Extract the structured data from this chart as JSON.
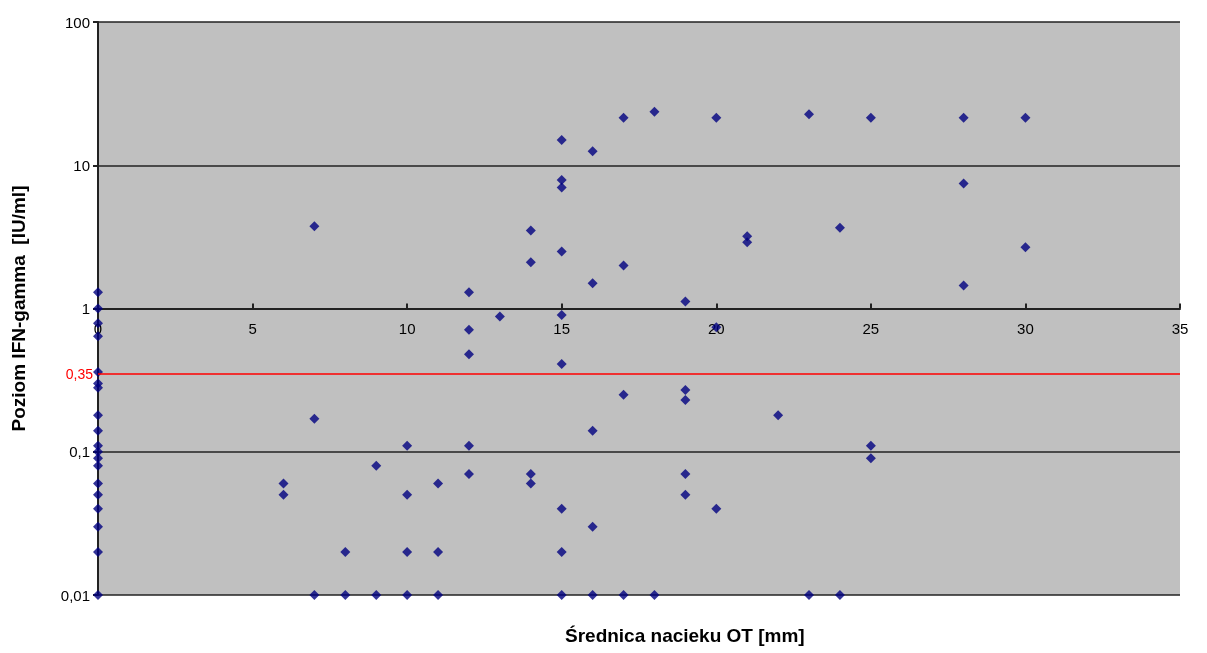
{
  "chart_data": {
    "type": "scatter",
    "xlabel": "Średnica nacieku OT [mm]",
    "ylabel": "Poziom IFN-gamma  [IU/ml]",
    "series": [
      {
        "color": "#000080",
        "x": [
          0,
          0,
          0,
          0,
          0,
          0,
          0,
          0,
          0,
          0,
          0,
          0,
          0,
          0,
          0,
          0,
          0,
          0,
          0,
          6,
          6,
          7,
          7,
          7,
          8,
          8,
          9,
          9,
          10,
          10,
          10,
          10,
          11,
          11,
          11,
          12,
          12,
          12,
          12,
          12,
          13,
          14,
          14,
          14,
          14,
          15,
          15,
          15,
          15,
          15,
          15,
          15,
          15,
          15,
          16,
          16,
          16,
          16,
          16,
          17,
          17,
          17,
          17,
          18,
          18,
          19,
          19,
          19,
          19,
          19,
          20,
          20,
          20,
          21,
          21,
          22,
          23,
          23,
          24,
          24,
          25,
          25,
          25,
          28,
          28,
          28,
          30,
          30
        ],
        "values": [
          1.3,
          1,
          0.79,
          0.64,
          0.36,
          0.3,
          0.28,
          0.18,
          0.14,
          0.11,
          0.1,
          0.09,
          0.08,
          0.06,
          0.05,
          0.04,
          0.03,
          0.02,
          0.01,
          0.06,
          0.05,
          3.75,
          0.17,
          0.01,
          0.02,
          0.01,
          0.08,
          0.01,
          0.11,
          0.05,
          0.02,
          0.01,
          0.06,
          0.02,
          0.01,
          1.3,
          0.71,
          0.48,
          0.11,
          0.07,
          0.88,
          3.5,
          2.1,
          0.07,
          0.06,
          15,
          7.9,
          7,
          2.5,
          0.9,
          0.41,
          0.04,
          0.02,
          0.01,
          12.5,
          1.5,
          0.14,
          0.03,
          0.01,
          21.5,
          2,
          0.25,
          0.01,
          23.6,
          0.01,
          1.12,
          0.27,
          0.23,
          0.07,
          0.05,
          21.5,
          0.74,
          0.04,
          3.2,
          2.9,
          0.18,
          22.7,
          0.01,
          3.66,
          0.01,
          21.5,
          0.11,
          0.09,
          21.5,
          7.45,
          1.45,
          21.5,
          2.68
        ]
      }
    ],
    "xlim": [
      0,
      35
    ],
    "xticks": [
      0,
      5,
      10,
      15,
      20,
      25,
      30,
      35
    ],
    "ylim": [
      0.01,
      100
    ],
    "yticks": [
      {
        "value": 0.01,
        "label": "0,01"
      },
      {
        "value": 0.1,
        "label": "0,1"
      },
      1,
      10,
      100
    ],
    "log": "y",
    "grid": "y",
    "marker": "diamond",
    "ref_lines": [
      {
        "axis": "y",
        "value": 0.35,
        "label": "0,35",
        "color": "#ff0000"
      }
    ]
  }
}
